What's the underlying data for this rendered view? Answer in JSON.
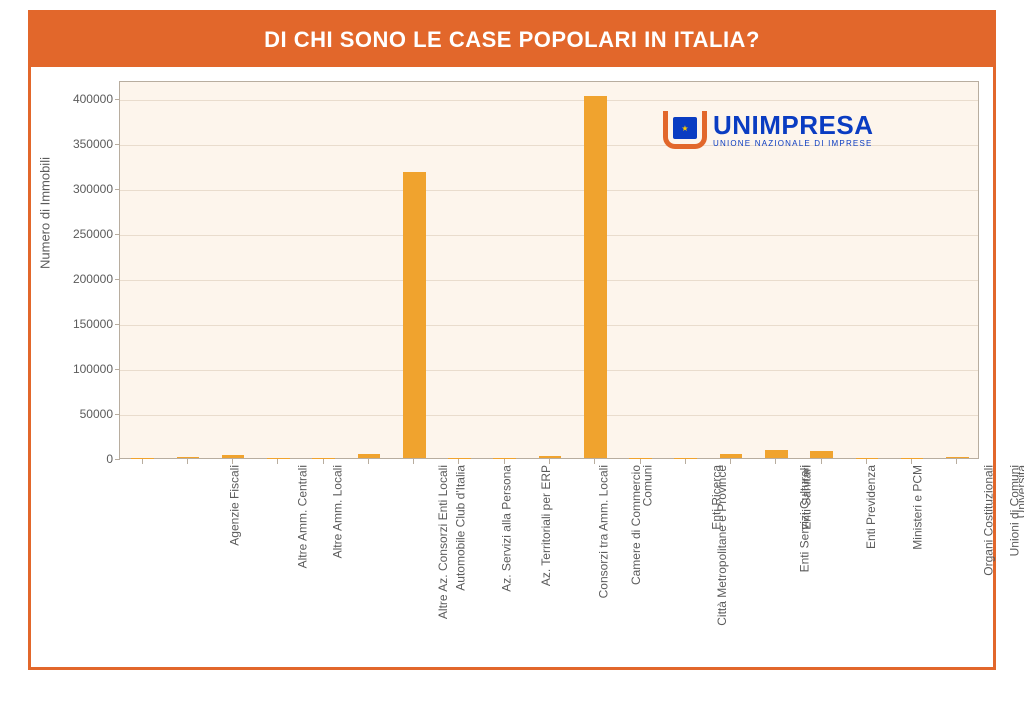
{
  "chart": {
    "type": "bar",
    "title": "DI CHI SONO LE CASE POPOLARI IN ITALIA?",
    "title_fontsize": 22,
    "title_color": "#ffffff",
    "title_bg": "#e2672b",
    "frame_color": "#e2672b",
    "plot_bg": "#fdf5ec",
    "grid_color": "#e9dccd",
    "axis_line_color": "#b8ad9f",
    "tick_text_color": "#5b5b5b",
    "bar_color": "#f0a32e",
    "bar_width": 0.5,
    "ylabel": "Numero di Immobili",
    "ylabel_fontsize": 13,
    "xlabel_fontsize": 12,
    "ylim": [
      0,
      420000
    ],
    "yticks": [
      0,
      50000,
      100000,
      150000,
      200000,
      250000,
      300000,
      350000,
      400000
    ],
    "categories": [
      "Agenzie Fiscali",
      "Altre Amm. Centrali",
      "Altre Amm. Locali",
      "Altre Az. Consorzi Enti Locali",
      "Automobile Club d'Italia",
      "Az. Servizi alla Persona",
      "Az. Territoriali per ERP",
      "Consorzi tra Amm. Locali",
      "Camere di Commercio",
      "Città Metropolitane e Province",
      "Comuni",
      "Enti Ricerca",
      "Enti Servizi Culturali",
      "Enti Sanitari",
      "Enti Previdenza",
      "Ministeri e PCM",
      "Organi Costituzionali",
      "Unioni di Comuni",
      "Università"
    ],
    "values": [
      200,
      800,
      3000,
      200,
      200,
      5000,
      318000,
      200,
      200,
      2000,
      402000,
      200,
      200,
      5000,
      9000,
      8000,
      200,
      200,
      1000
    ]
  },
  "logo": {
    "main": "UNIMPRESA",
    "sub": "UNIONE NAZIONALE DI IMPRESE",
    "orange": "#e2672b",
    "blue": "#0a3cc2"
  }
}
